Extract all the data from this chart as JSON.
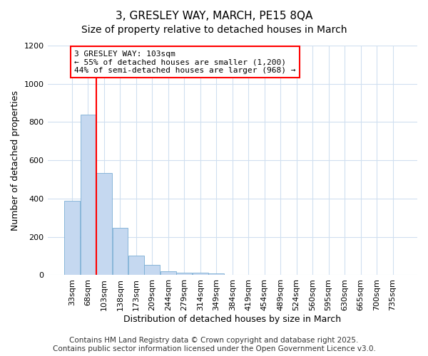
{
  "title1": "3, GRESLEY WAY, MARCH, PE15 8QA",
  "title2": "Size of property relative to detached houses in March",
  "xlabel": "Distribution of detached houses by size in March",
  "ylabel": "Number of detached properties",
  "categories": [
    "33sqm",
    "68sqm",
    "103sqm",
    "138sqm",
    "173sqm",
    "209sqm",
    "244sqm",
    "279sqm",
    "314sqm",
    "349sqm",
    "384sqm",
    "419sqm",
    "454sqm",
    "489sqm",
    "524sqm",
    "560sqm",
    "595sqm",
    "630sqm",
    "665sqm",
    "700sqm",
    "735sqm"
  ],
  "bar_values": [
    390,
    840,
    535,
    248,
    103,
    55,
    22,
    14,
    13,
    8,
    0,
    0,
    0,
    0,
    0,
    0,
    0,
    0,
    0,
    0,
    0
  ],
  "bar_color": "#c5d8f0",
  "bar_edge_color": "#7aadd4",
  "background_color": "#ffffff",
  "grid_color": "#d0dff0",
  "red_line_index": 2,
  "annotation_line1": "3 GRESLEY WAY: 103sqm",
  "annotation_line2": "← 55% of detached houses are smaller (1,200)",
  "annotation_line3": "44% of semi-detached houses are larger (968) →",
  "ylim": [
    0,
    1200
  ],
  "yticks": [
    0,
    200,
    400,
    600,
    800,
    1000,
    1200
  ],
  "footer_line1": "Contains HM Land Registry data © Crown copyright and database right 2025.",
  "footer_line2": "Contains public sector information licensed under the Open Government Licence v3.0.",
  "title1_fontsize": 11,
  "title2_fontsize": 10,
  "axis_label_fontsize": 9,
  "tick_fontsize": 8,
  "annotation_fontsize": 8,
  "footer_fontsize": 7.5
}
